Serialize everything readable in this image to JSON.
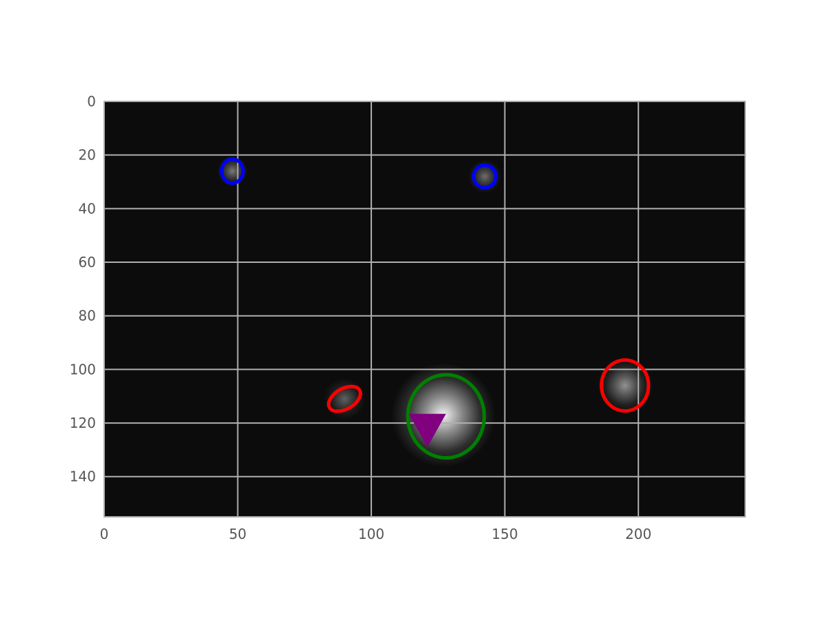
{
  "chart_data": {
    "type": "image",
    "title": "",
    "xlabel": "",
    "ylabel": "",
    "xlim": [
      0,
      240
    ],
    "ylim": [
      155,
      0
    ],
    "y_inverted": true,
    "grid": true,
    "xticks": [
      0,
      50,
      100,
      150,
      200
    ],
    "yticks": [
      0,
      20,
      40,
      60,
      80,
      100,
      120,
      140
    ],
    "background_color": "#0c0c0c",
    "grid_color": "#b0b0b0",
    "frame_color": "#aaaaaa",
    "sources": [
      {
        "x": 48,
        "y": 26,
        "brightness": 0.45,
        "spread": 2.2
      },
      {
        "x": 142.5,
        "y": 28,
        "brightness": 0.4,
        "spread": 2.4
      },
      {
        "x": 90,
        "y": 111,
        "brightness": 0.35,
        "spread": 3.0
      },
      {
        "x": 127,
        "y": 117,
        "brightness": 0.95,
        "spread": 7.5
      },
      {
        "x": 195,
        "y": 106,
        "brightness": 0.55,
        "spread": 4.0
      }
    ],
    "ellipses": [
      {
        "cx": 48,
        "cy": 26,
        "rx": 4,
        "ry": 4.5,
        "angle": 0,
        "color": "#0000ff"
      },
      {
        "cx": 142.5,
        "cy": 28,
        "rx": 4.2,
        "ry": 4.2,
        "angle": 0,
        "color": "#0000ff"
      },
      {
        "cx": 90,
        "cy": 111,
        "rx": 6.5,
        "ry": 3.8,
        "angle": -30,
        "color": "#ff0000"
      },
      {
        "cx": 195,
        "cy": 106,
        "rx": 8.8,
        "ry": 9.5,
        "angle": 0,
        "color": "#ff0000"
      },
      {
        "cx": 128,
        "cy": 117.5,
        "rx": 14.3,
        "ry": 15.5,
        "angle": 0,
        "color": "#008000"
      }
    ],
    "markers": [
      {
        "x": 121,
        "y": 122,
        "shape": "triangle-down",
        "color": "#800080"
      }
    ]
  }
}
